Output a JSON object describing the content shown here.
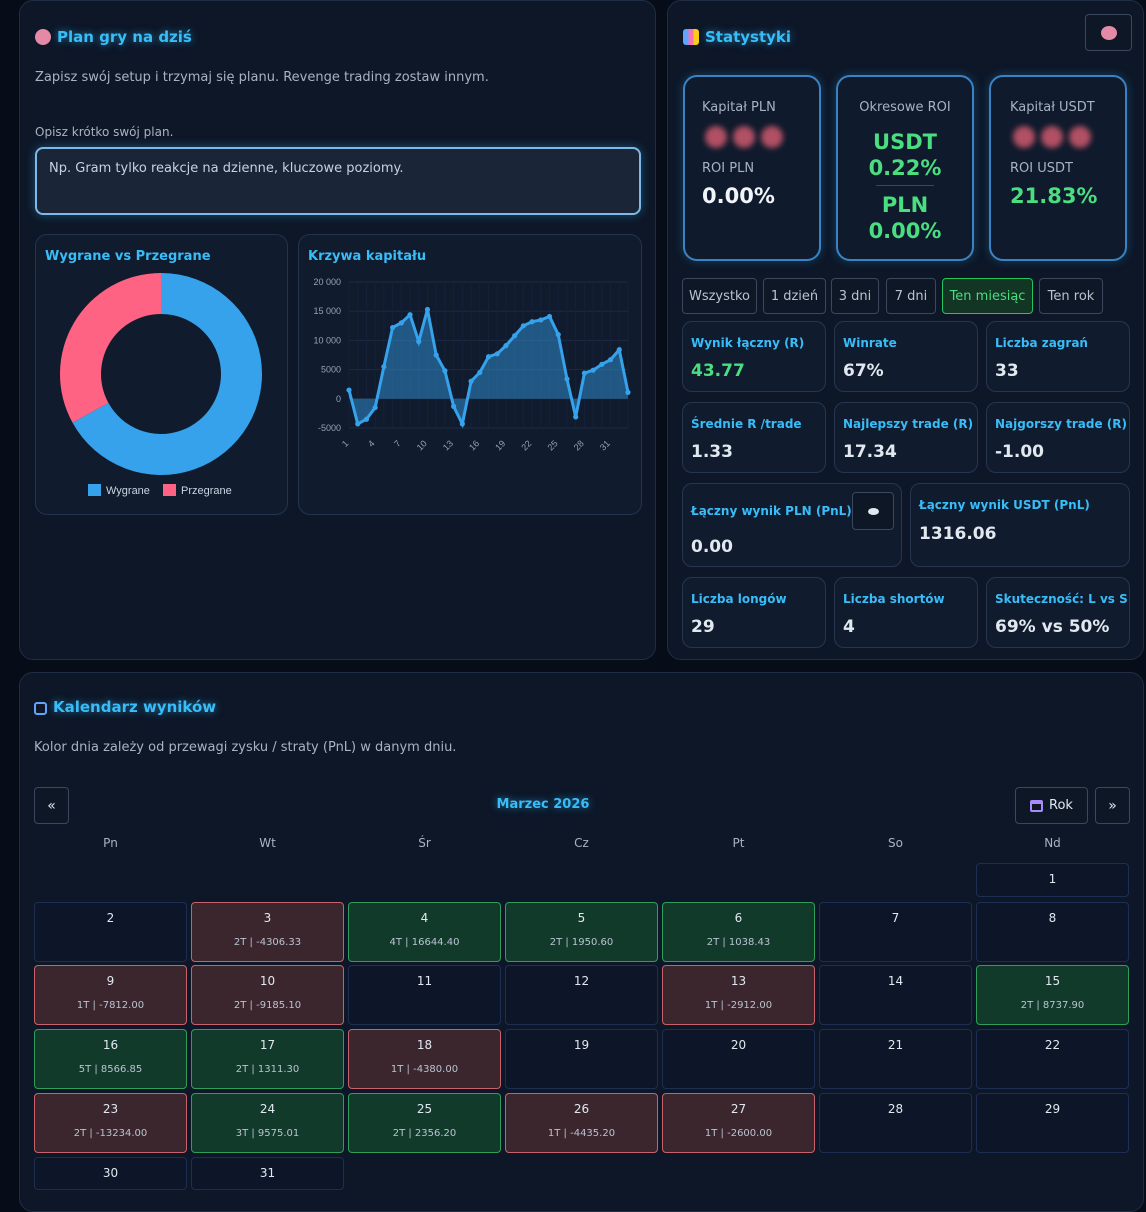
{
  "plan": {
    "title": "Plan gry na dziś",
    "desc": "Zapisz swój setup i trzymaj się planu. Revenge trading zostaw innym.",
    "label": "Opisz krótko swój plan.",
    "placeholder": "Np. Gram tylko reakcje na dzienne, kluczowe poziomy.",
    "icon": "brain-icon"
  },
  "donut": {
    "title": "Wygrane vs Przegrane",
    "legend": [
      "Wygrane",
      "Przegrane"
    ],
    "colors": {
      "win": "#36a2eb",
      "loss": "#ff6384"
    }
  },
  "equity": {
    "title": "Krzywa kapitału",
    "color": "#36a2eb"
  },
  "chart_data": [
    {
      "type": "pie",
      "title": "Wygrane vs Przegrane",
      "labels": [
        "Wygrane",
        "Przegrane"
      ],
      "values": [
        67,
        33
      ],
      "legend": "bottom"
    },
    {
      "type": "line",
      "title": "Krzywa kapitału",
      "x": [
        1,
        2,
        3,
        4,
        5,
        6,
        7,
        8,
        9,
        10,
        11,
        12,
        13,
        14,
        15,
        16,
        17,
        18,
        19,
        20,
        21,
        22,
        23,
        24,
        25,
        26,
        27,
        28,
        29,
        30,
        31,
        32,
        33
      ],
      "y": [
        1500,
        -4300,
        -3500,
        -1500,
        5500,
        12200,
        13000,
        14400,
        9800,
        15300,
        7500,
        4800,
        -1300,
        -4300,
        3000,
        4500,
        7200,
        7700,
        9100,
        10800,
        12500,
        13200,
        13500,
        14100,
        11000,
        3400,
        -3100,
        4400,
        4900,
        5900,
        6700,
        8400,
        1100
      ],
      "yticks": [
        "20 000",
        "15 000",
        "10 000",
        "5000",
        "0",
        "-5000"
      ],
      "xticks": [
        "1",
        "4",
        "7",
        "10",
        "13",
        "16",
        "19",
        "22",
        "25",
        "28",
        "31"
      ],
      "ylim": [
        -5000,
        20000
      ]
    }
  ],
  "stats": {
    "title": "Statystyki",
    "brain_button": "brain-icon",
    "kap_pln": {
      "label": "Kapitał PLN",
      "roi_label": "ROI PLN",
      "roi": "0.00%"
    },
    "okres": {
      "label": "Okresowe ROI",
      "usdt": "USDT",
      "usdt_val": "0.22%",
      "pln": "PLN",
      "pln_val": "0.00%"
    },
    "kap_usdt": {
      "label": "Kapitał USDT",
      "roi_label": "ROI USDT",
      "roi": "21.83%"
    },
    "filters": [
      "Wszystko",
      "1 dzień",
      "3 dni",
      "7 dni",
      "Ten miesiąc",
      "Ten rok"
    ],
    "active_filter": "Ten miesiąc",
    "cards": [
      {
        "t": "Wynik łączny (R)",
        "v": "43.77"
      },
      {
        "t": "Winrate",
        "v": "67%"
      },
      {
        "t": "Liczba zagrań",
        "v": "33"
      },
      {
        "t": "Średnie R /trade",
        "v": "1.33"
      },
      {
        "t": "Najlepszy trade (R)",
        "v": "17.34"
      },
      {
        "t": "Najgorszy trade (R)",
        "v": "-1.00"
      },
      {
        "t": "Łączny wynik PLN (PnL)",
        "v": "0.00"
      },
      {
        "t": "Łączny wynik USDT (PnL)",
        "v": "1316.06"
      },
      {
        "t": "Liczba longów",
        "v": "29"
      },
      {
        "t": "Liczba shortów",
        "v": "4"
      },
      {
        "t": "Skuteczność: L vs S",
        "v": "69% vs 50%"
      }
    ],
    "green": "#4ade80"
  },
  "calendar": {
    "title": "Kalendarz wyników",
    "desc": "Kolor dnia zależy od przewagi zysku / straty (PnL) w danym dniu.",
    "month": "Marzec 2026",
    "prev": "«",
    "next": "»",
    "year_btn": "Rok",
    "weekdays": [
      "Pn",
      "Wt",
      "Śr",
      "Cz",
      "Pt",
      "So",
      "Nd"
    ],
    "days": [
      {
        "d": "1",
        "s": "",
        "k": ""
      },
      {
        "d": "2",
        "s": "",
        "k": ""
      },
      {
        "d": "3",
        "s": "2T | -4306.33",
        "k": "loss"
      },
      {
        "d": "4",
        "s": "4T | 16644.40",
        "k": "win"
      },
      {
        "d": "5",
        "s": "2T | 1950.60",
        "k": "win"
      },
      {
        "d": "6",
        "s": "2T | 1038.43",
        "k": "win"
      },
      {
        "d": "7",
        "s": "",
        "k": ""
      },
      {
        "d": "8",
        "s": "",
        "k": ""
      },
      {
        "d": "9",
        "s": "1T | -7812.00",
        "k": "loss"
      },
      {
        "d": "10",
        "s": "2T | -9185.10",
        "k": "loss"
      },
      {
        "d": "11",
        "s": "",
        "k": ""
      },
      {
        "d": "12",
        "s": "",
        "k": ""
      },
      {
        "d": "13",
        "s": "1T | -2912.00",
        "k": "loss"
      },
      {
        "d": "14",
        "s": "",
        "k": ""
      },
      {
        "d": "15",
        "s": "2T | 8737.90",
        "k": "win"
      },
      {
        "d": "16",
        "s": "5T | 8566.85",
        "k": "win"
      },
      {
        "d": "17",
        "s": "2T | 1311.30",
        "k": "win"
      },
      {
        "d": "18",
        "s": "1T | -4380.00",
        "k": "loss"
      },
      {
        "d": "19",
        "s": "",
        "k": ""
      },
      {
        "d": "20",
        "s": "",
        "k": ""
      },
      {
        "d": "21",
        "s": "",
        "k": ""
      },
      {
        "d": "22",
        "s": "",
        "k": ""
      },
      {
        "d": "23",
        "s": "2T | -13234.00",
        "k": "loss"
      },
      {
        "d": "24",
        "s": "3T | 9575.01",
        "k": "win"
      },
      {
        "d": "25",
        "s": "2T | 2356.20",
        "k": "win"
      },
      {
        "d": "26",
        "s": "1T | -4435.20",
        "k": "loss"
      },
      {
        "d": "27",
        "s": "1T | -2600.00",
        "k": "loss"
      },
      {
        "d": "28",
        "s": "",
        "k": ""
      },
      {
        "d": "29",
        "s": "",
        "k": ""
      },
      {
        "d": "30",
        "s": "",
        "k": ""
      },
      {
        "d": "31",
        "s": "",
        "k": ""
      }
    ]
  }
}
